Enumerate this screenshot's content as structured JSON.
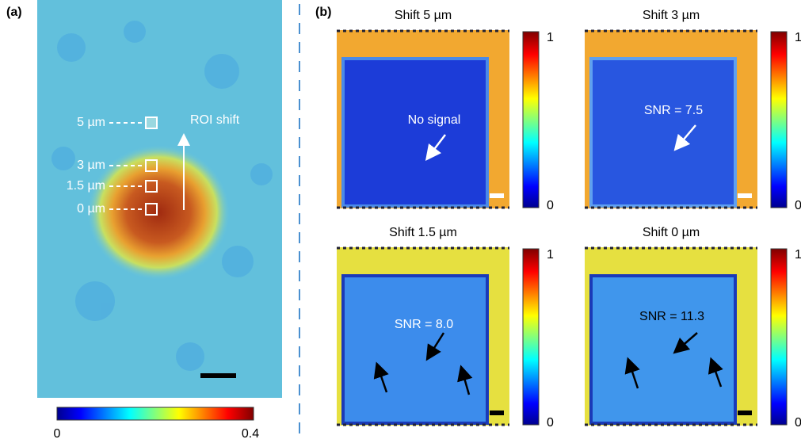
{
  "panel_a": {
    "label": "(a)",
    "roi_labels": [
      "5 µm",
      "3 µm",
      "1.5 µm",
      "0 µm"
    ],
    "arrow_label": "ROI shift",
    "colorbar": {
      "min": 0,
      "max": 0.4
    }
  },
  "panel_b": {
    "label": "(b)",
    "subpanels": [
      {
        "title": "Shift 5 µm",
        "annotation": "No signal",
        "colorbar_max": 1,
        "colorbar_min": 0
      },
      {
        "title": "Shift 3 µm",
        "annotation": "SNR = 7.5",
        "colorbar_max": 1,
        "colorbar_min": 0
      },
      {
        "title": "Shift 1.5 µm",
        "annotation": "SNR = 8.0",
        "colorbar_max": 1,
        "colorbar_min": 0
      },
      {
        "title": "Shift 0 µm",
        "annotation": "SNR = 11.3",
        "colorbar_max": 1,
        "colorbar_min": 0
      }
    ]
  }
}
